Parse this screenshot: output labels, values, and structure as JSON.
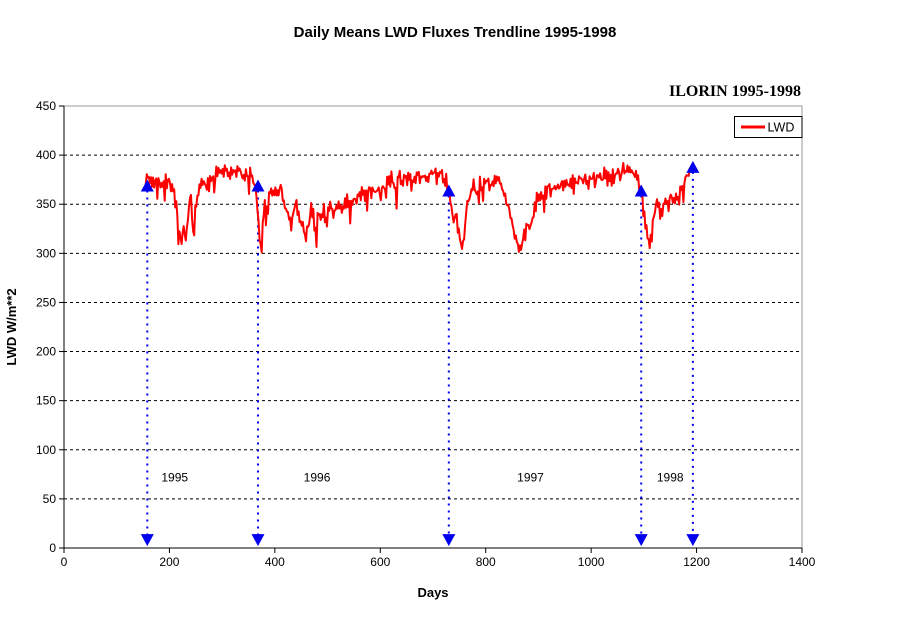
{
  "station_label": "ILORIN 1995-1998",
  "chart_data": {
    "type": "line",
    "title": "Daily Means LWD Fluxes Trendline 1995-1998",
    "xlabel": "Days",
    "ylabel": "LWD W/m**2",
    "xlim": [
      0,
      1400
    ],
    "ylim": [
      0,
      450
    ],
    "x_ticks": [
      0,
      200,
      400,
      600,
      800,
      1000,
      1200,
      1400
    ],
    "y_ticks": [
      0,
      50,
      100,
      150,
      200,
      250,
      300,
      350,
      400,
      450
    ],
    "grid": {
      "horizontal": true,
      "style": "dashed",
      "color": "#000000"
    },
    "plot_border_color": "#999999",
    "legend_position": "inside-top-right",
    "series": [
      {
        "name": "LWD",
        "color": "#ff0000",
        "line_width": 2,
        "trend_points": [
          [
            155,
            374
          ],
          [
            162,
            376
          ],
          [
            170,
            371
          ],
          [
            178,
            377
          ],
          [
            186,
            371
          ],
          [
            194,
            375
          ],
          [
            202,
            372
          ],
          [
            208,
            364
          ],
          [
            213,
            348
          ],
          [
            218,
            322
          ],
          [
            223,
            313
          ],
          [
            227,
            326
          ],
          [
            231,
            315
          ],
          [
            236,
            340
          ],
          [
            240,
            368
          ],
          [
            243,
            336
          ],
          [
            246,
            316
          ],
          [
            250,
            350
          ],
          [
            255,
            364
          ],
          [
            262,
            370
          ],
          [
            270,
            368
          ],
          [
            278,
            374
          ],
          [
            286,
            379
          ],
          [
            295,
            383
          ],
          [
            305,
            386
          ],
          [
            315,
            384
          ],
          [
            325,
            387
          ],
          [
            335,
            382
          ],
          [
            345,
            378
          ],
          [
            353,
            381
          ],
          [
            360,
            374
          ],
          [
            364,
            369
          ],
          [
            368,
            344
          ],
          [
            372,
            313
          ],
          [
            375,
            308
          ],
          [
            378,
            334
          ],
          [
            382,
            352
          ],
          [
            386,
            342
          ],
          [
            390,
            366
          ],
          [
            395,
            358
          ],
          [
            400,
            369
          ],
          [
            406,
            361
          ],
          [
            412,
            370
          ],
          [
            417,
            354
          ],
          [
            422,
            341
          ],
          [
            427,
            334
          ],
          [
            432,
            325
          ],
          [
            436,
            344
          ],
          [
            441,
            353
          ],
          [
            446,
            339
          ],
          [
            451,
            330
          ],
          [
            456,
            322
          ],
          [
            460,
            318
          ],
          [
            464,
            327
          ],
          [
            468,
            345
          ],
          [
            473,
            338
          ],
          [
            478,
            322
          ],
          [
            483,
            340
          ],
          [
            488,
            331
          ],
          [
            493,
            342
          ],
          [
            499,
            336
          ],
          [
            505,
            345
          ],
          [
            512,
            338
          ],
          [
            519,
            350
          ],
          [
            526,
            344
          ],
          [
            533,
            355
          ],
          [
            540,
            349
          ],
          [
            548,
            359
          ],
          [
            556,
            353
          ],
          [
            564,
            363
          ],
          [
            572,
            357
          ],
          [
            580,
            366
          ],
          [
            588,
            361
          ],
          [
            596,
            370
          ],
          [
            604,
            364
          ],
          [
            612,
            371
          ],
          [
            620,
            376
          ],
          [
            628,
            369
          ],
          [
            636,
            377
          ],
          [
            644,
            371
          ],
          [
            652,
            379
          ],
          [
            660,
            373
          ],
          [
            668,
            380
          ],
          [
            676,
            374
          ],
          [
            684,
            381
          ],
          [
            692,
            375
          ],
          [
            700,
            382
          ],
          [
            708,
            376
          ],
          [
            715,
            383
          ],
          [
            722,
            378
          ],
          [
            728,
            369
          ],
          [
            731,
            361
          ],
          [
            735,
            345
          ],
          [
            740,
            331
          ],
          [
            744,
            340
          ],
          [
            748,
            325
          ],
          [
            752,
            312
          ],
          [
            756,
            306
          ],
          [
            761,
            331
          ],
          [
            766,
            352
          ],
          [
            771,
            362
          ],
          [
            777,
            369
          ],
          [
            783,
            363
          ],
          [
            789,
            371
          ],
          [
            795,
            365
          ],
          [
            801,
            373
          ],
          [
            807,
            367
          ],
          [
            813,
            375
          ],
          [
            819,
            369
          ],
          [
            825,
            376
          ],
          [
            831,
            369
          ],
          [
            837,
            359
          ],
          [
            843,
            348
          ],
          [
            849,
            336
          ],
          [
            854,
            321
          ],
          [
            859,
            309
          ],
          [
            864,
            303
          ],
          [
            869,
            310
          ],
          [
            874,
            318
          ],
          [
            879,
            328
          ],
          [
            884,
            322
          ],
          [
            889,
            336
          ],
          [
            894,
            349
          ],
          [
            900,
            359
          ],
          [
            906,
            364
          ],
          [
            912,
            358
          ],
          [
            918,
            367
          ],
          [
            924,
            361
          ],
          [
            930,
            369
          ],
          [
            936,
            363
          ],
          [
            942,
            371
          ],
          [
            948,
            365
          ],
          [
            954,
            373
          ],
          [
            960,
            367
          ],
          [
            966,
            375
          ],
          [
            972,
            369
          ],
          [
            978,
            376
          ],
          [
            984,
            371
          ],
          [
            990,
            378
          ],
          [
            996,
            372
          ],
          [
            1002,
            379
          ],
          [
            1008,
            373
          ],
          [
            1014,
            380
          ],
          [
            1020,
            375
          ],
          [
            1026,
            382
          ],
          [
            1032,
            376
          ],
          [
            1038,
            383
          ],
          [
            1044,
            377
          ],
          [
            1050,
            384
          ],
          [
            1056,
            378
          ],
          [
            1062,
            385
          ],
          [
            1068,
            380
          ],
          [
            1074,
            386
          ],
          [
            1080,
            381
          ],
          [
            1086,
            383
          ],
          [
            1091,
            373
          ],
          [
            1095,
            362
          ],
          [
            1099,
            346
          ],
          [
            1104,
            330
          ],
          [
            1108,
            315
          ],
          [
            1112,
            308
          ],
          [
            1116,
            322
          ],
          [
            1120,
            340
          ],
          [
            1124,
            356
          ],
          [
            1128,
            347
          ],
          [
            1132,
            337
          ],
          [
            1136,
            343
          ],
          [
            1141,
            352
          ],
          [
            1146,
            346
          ],
          [
            1151,
            358
          ],
          [
            1156,
            351
          ],
          [
            1161,
            362
          ],
          [
            1166,
            356
          ],
          [
            1171,
            366
          ],
          [
            1176,
            372
          ],
          [
            1181,
            378
          ],
          [
            1186,
            383
          ],
          [
            1191,
            386
          ],
          [
            1195,
            388
          ]
        ],
        "noise": {
          "seed": 20233,
          "amplitude": 6,
          "spike_probability": 0.05,
          "spike_extra": 14,
          "step_days": 2,
          "min": 301,
          "max": 392
        }
      }
    ],
    "segment_markers": {
      "color": "#0000ee",
      "line_style": "dotted",
      "bottom_value": 8,
      "points": [
        {
          "day": 158,
          "top_value": 368
        },
        {
          "day": 368,
          "top_value": 368
        },
        {
          "day": 730,
          "top_value": 363
        },
        {
          "day": 1095,
          "top_value": 363
        },
        {
          "day": 1193,
          "top_value": 387
        }
      ]
    },
    "year_labels": [
      {
        "label": "1995",
        "day": 210,
        "value": 72
      },
      {
        "label": "1996",
        "day": 480,
        "value": 72
      },
      {
        "label": "1997",
        "day": 885,
        "value": 72
      },
      {
        "label": "1998",
        "day": 1150,
        "value": 72
      }
    ]
  }
}
